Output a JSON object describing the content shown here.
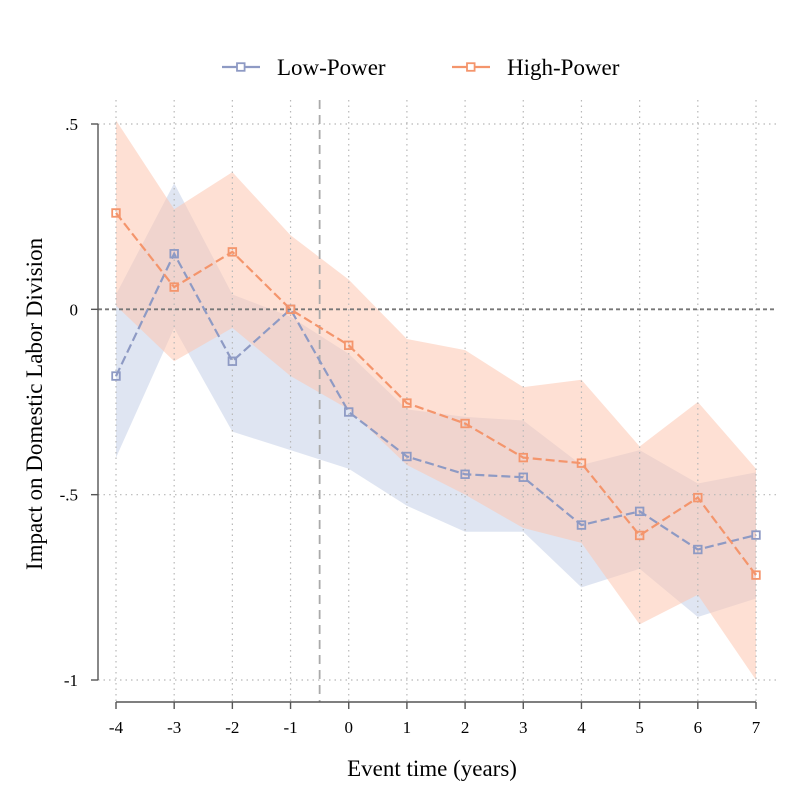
{
  "chart_data": {
    "type": "line",
    "title": "",
    "xlabel": "Event time (years)",
    "ylabel": "Impact on Domestic Labor Division",
    "x": [
      -4,
      -3,
      -2,
      -1,
      0,
      1,
      2,
      3,
      4,
      5,
      6,
      7
    ],
    "xticks": [
      "-4",
      "-3",
      "-2",
      "-1",
      "0",
      "1",
      "2",
      "3",
      "4",
      "5",
      "6",
      "7"
    ],
    "yticks": [
      {
        "value": 0.5,
        "label": ".5"
      },
      {
        "value": 0,
        "label": "0"
      },
      {
        "value": -0.5,
        "label": "-.5"
      },
      {
        "value": -1,
        "label": "-1"
      }
    ],
    "xlim": [
      -4,
      7
    ],
    "ylim": [
      -1,
      0.5
    ],
    "grid": "dotted",
    "legend_position": "top",
    "reference_lines": {
      "horizontal_y": 0,
      "vertical_x": -0.5
    },
    "series": [
      {
        "name": "Low-Power",
        "color": "#8e9ac4",
        "band_color": "#c5d0e8",
        "values": [
          -0.18,
          0.15,
          -0.14,
          0.0,
          -0.277,
          -0.397,
          -0.445,
          -0.453,
          -0.582,
          -0.545,
          -0.648,
          -0.609
        ],
        "ci_lower": [
          -0.4,
          -0.05,
          -0.33,
          -0.38,
          -0.43,
          -0.53,
          -0.6,
          -0.6,
          -0.75,
          -0.7,
          -0.83,
          -0.78
        ],
        "ci_upper": [
          0.04,
          0.34,
          0.04,
          -0.02,
          -0.12,
          -0.27,
          -0.29,
          -0.3,
          -0.42,
          -0.38,
          -0.47,
          -0.44
        ]
      },
      {
        "name": "High-Power",
        "color": "#f4956c",
        "band_color": "#fdc7b1",
        "values": [
          0.26,
          0.06,
          0.155,
          0.0,
          -0.097,
          -0.253,
          -0.308,
          -0.4,
          -0.415,
          -0.61,
          -0.508,
          -0.717
        ],
        "ci_lower": [
          0.01,
          -0.14,
          -0.05,
          -0.18,
          -0.27,
          -0.42,
          -0.5,
          -0.59,
          -0.63,
          -0.85,
          -0.77,
          -1.0
        ],
        "ci_upper": [
          0.51,
          0.27,
          0.37,
          0.2,
          0.08,
          -0.08,
          -0.11,
          -0.21,
          -0.19,
          -0.37,
          -0.25,
          -0.43
        ]
      }
    ]
  }
}
